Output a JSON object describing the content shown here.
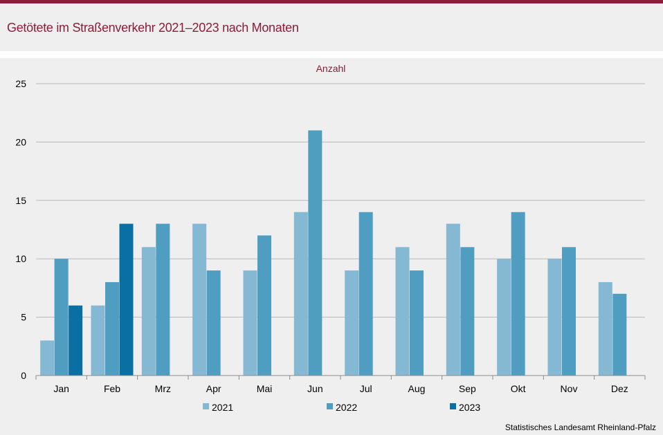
{
  "title": "Getötete im Straßenverkehr 2021–2023 nach Monaten",
  "source": "Statistisches Landesamt  Rheinland-Pfalz",
  "colors": {
    "accent": "#8c1c3a",
    "s2021": "#84b8d3",
    "s2022": "#4f9dc1",
    "s2023": "#0a6fa2"
  },
  "chart_data": {
    "type": "bar",
    "ylabel": "Anzahl",
    "ylim": [
      0,
      25
    ],
    "yticks": [
      0,
      5,
      10,
      15,
      20,
      25
    ],
    "grid": true,
    "legend_position": "bottom",
    "categories": [
      "Jan",
      "Feb",
      "Mrz",
      "Apr",
      "Mai",
      "Jun",
      "Jul",
      "Aug",
      "Sep",
      "Okt",
      "Nov",
      "Dez"
    ],
    "series": [
      {
        "name": "2021",
        "color": "#84b8d3",
        "values": [
          3,
          6,
          11,
          13,
          9,
          14,
          9,
          11,
          13,
          10,
          10,
          8
        ]
      },
      {
        "name": "2022",
        "color": "#4f9dc1",
        "values": [
          10,
          8,
          13,
          9,
          12,
          21,
          14,
          9,
          11,
          14,
          11,
          7
        ]
      },
      {
        "name": "2023",
        "color": "#0a6fa2",
        "values": [
          6,
          13,
          null,
          null,
          null,
          null,
          null,
          null,
          null,
          null,
          null,
          null
        ]
      }
    ]
  }
}
